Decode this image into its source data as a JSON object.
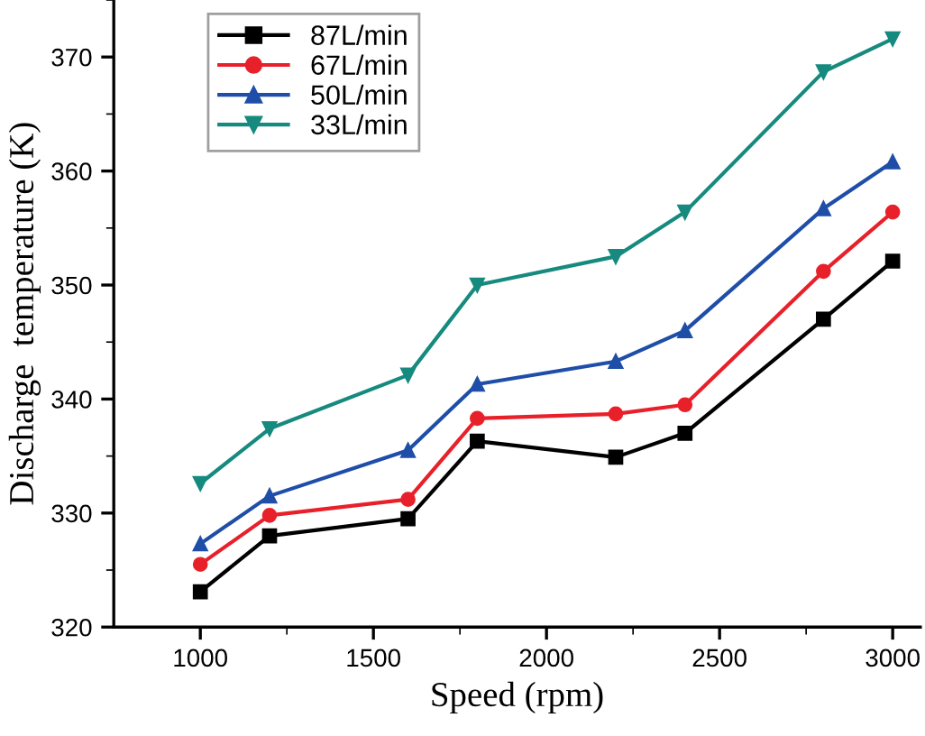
{
  "chart_data": {
    "type": "line",
    "xlabel": "Speed (rpm)",
    "ylabel": "Discharge  temperature (K)",
    "x": [
      1000,
      1200,
      1600,
      1800,
      2200,
      2400,
      2800,
      3000
    ],
    "series": [
      {
        "name": "87L/min",
        "color": "#000000",
        "marker": "square",
        "values": [
          323.1,
          328.0,
          329.5,
          336.3,
          334.9,
          337.0,
          347.0,
          352.1
        ]
      },
      {
        "name": "67L/min",
        "color": "#e8202a",
        "marker": "circle",
        "values": [
          325.5,
          329.8,
          331.2,
          338.3,
          338.7,
          339.5,
          351.2,
          356.4
        ]
      },
      {
        "name": "50L/min",
        "color": "#1f4ea8",
        "marker": "triangle",
        "values": [
          327.3,
          331.5,
          335.5,
          341.3,
          343.3,
          346.0,
          356.7,
          360.8
        ]
      },
      {
        "name": "33L/min",
        "color": "#168a7e",
        "marker": "triangle_down",
        "values": [
          332.6,
          337.4,
          342.1,
          350.0,
          352.5,
          356.4,
          368.7,
          371.6
        ]
      }
    ],
    "xlim": [
      750,
      3080
    ],
    "xticks": [
      1000,
      1500,
      2000,
      2500,
      3000
    ],
    "ylim": [
      320,
      375
    ],
    "yticks": [
      320,
      330,
      340,
      350,
      360,
      370
    ],
    "grid": false,
    "legend": "top left",
    "line_style": "solid"
  }
}
